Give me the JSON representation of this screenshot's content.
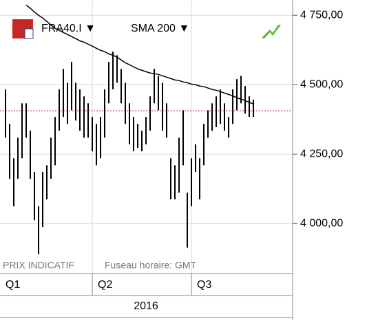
{
  "chart_data": {
    "type": "ohlc_bar",
    "symbol": "FRA40.I ▼",
    "indicator": "SMA 200 ▼",
    "footer_left": "PRIX INDICATIF",
    "footer_right": "Fuseau horaire: GMT",
    "year": "2016",
    "quarters": [
      {
        "label": "Q1",
        "start": 0
      },
      {
        "label": "Q2",
        "start": 22
      },
      {
        "label": "Q3",
        "start": 46
      }
    ],
    "ylim": [
      3820,
      4805
    ],
    "yticks": [
      {
        "value": 4000,
        "label": "4 000,00"
      },
      {
        "value": 4250,
        "label": "4 250,00"
      },
      {
        "value": 4500,
        "label": "4 500,00"
      },
      {
        "value": 4750,
        "label": "4 750,00"
      }
    ],
    "grid": true,
    "reference_line": 4406,
    "reference_color": "#c00000",
    "bar_color": "#000000",
    "high": [
      4483,
      4359,
      4235,
      4309,
      4433,
      4433,
      4334,
      4186,
      4062,
      4186,
      4210,
      4309,
      4384,
      4483,
      4557,
      4507,
      4582,
      4507,
      4483,
      4458,
      4433,
      4384,
      4359,
      4384,
      4483,
      4582,
      4619,
      4606,
      4557,
      4507,
      4433,
      4384,
      4359,
      4334,
      4384,
      4458,
      4557,
      4532,
      4507,
      4433,
      4235,
      4210,
      4309,
      4408,
      4111,
      4235,
      4285,
      4235,
      4359,
      4408,
      4433,
      4458,
      4483,
      4433,
      4384,
      4483,
      4520,
      4532,
      4495,
      4458,
      4446
    ],
    "low": [
      4309,
      4161,
      4062,
      4161,
      4235,
      4309,
      4161,
      4012,
      3889,
      3988,
      4087,
      4161,
      4210,
      4334,
      4384,
      4359,
      4408,
      4371,
      4334,
      4309,
      4309,
      4260,
      4210,
      4235,
      4309,
      4433,
      4483,
      4507,
      4433,
      4359,
      4285,
      4260,
      4272,
      4260,
      4285,
      4334,
      4433,
      4408,
      4334,
      4309,
      4087,
      4087,
      4111,
      4210,
      3913,
      4062,
      4186,
      4087,
      4210,
      4309,
      4334,
      4347,
      4359,
      4334,
      4309,
      4359,
      4408,
      4433,
      4396,
      4384,
      4384
    ],
    "sma": [
      null,
      null,
      null,
      null,
      null,
      4787,
      4775,
      4762,
      4750,
      4740,
      4728,
      4715,
      4703,
      4696,
      4688,
      4681,
      4673,
      4666,
      4658,
      4653,
      4646,
      4639,
      4631,
      4624,
      4619,
      4611,
      4606,
      4599,
      4589,
      4579,
      4572,
      4564,
      4557,
      4552,
      4547,
      4542,
      4540,
      4537,
      4532,
      4527,
      4522,
      4517,
      4515,
      4510,
      4507,
      4502,
      4500,
      4495,
      4493,
      4488,
      4483,
      4480,
      4475,
      4470,
      4465,
      4460,
      4453,
      4448,
      4443,
      4436,
      4431
    ],
    "sma_color": "#000000"
  }
}
